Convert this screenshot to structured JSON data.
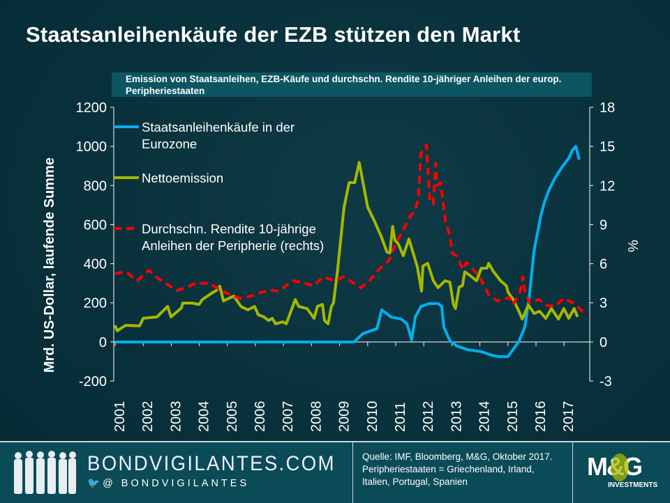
{
  "title": "Staatsanleihenkäufe der EZB stützen den Markt",
  "subtitle": "Emission von Staatsanleihen, EZB-Käufe und durchschn. Rendite 10-jähriger Anleihen der europ. Peripheriestaaten",
  "footer": {
    "site": "BONDVIGILANTES.COM",
    "twitter": "@ BONDVIGILANTES",
    "source_line1": "Quelle: IMF,  Bloomberg, M&G, Oktober 2017.",
    "source_line2": "Peripheriestaaten = Griechenland, Irland, Italien, Portugal, Spanien",
    "logo_text": "M&G",
    "logo_sub": "INVESTMENTS"
  },
  "colors": {
    "purchases": "#00b0f0",
    "issuance": "#a6b800",
    "yield": "#ff0000",
    "background": "#08303b",
    "footer": "#0b4b58"
  },
  "chart_data": {
    "type": "line",
    "ylabel": "Mrd. US-Dollar, laufende Summe",
    "ylabel_right": "%",
    "xlim": [
      2001,
      2017.85
    ],
    "ylim": [
      -200,
      1200
    ],
    "ylim_right": [
      -3,
      18
    ],
    "yticks": [
      "1200",
      "1000",
      "800",
      "600",
      "400",
      "200",
      "0",
      "-200"
    ],
    "yticks_right": [
      "18",
      "15",
      "12",
      "9",
      "6",
      "3",
      "0",
      "-3"
    ],
    "xticks": [
      "2001",
      "2002",
      "2003",
      "2004",
      "2005",
      "2006",
      "2007",
      "2008",
      "2009",
      "2010",
      "2011",
      "2012",
      "2013",
      "2014",
      "2015",
      "2016",
      "2017"
    ],
    "legend_position": "top-left",
    "series": [
      {
        "name": "Staatsanleihenkäufe in der Eurozone",
        "axis": "left",
        "style": "solid",
        "x": [
          2001,
          2009.51,
          2009.83,
          2010.33,
          2010.5,
          2010.83,
          2011.2,
          2011.4,
          2011.57,
          2011.7,
          2011.9,
          2012.19,
          2012.52,
          2012.64,
          2012.72,
          2012.94,
          2013.19,
          2013.56,
          2014.06,
          2014.43,
          2014.68,
          2015.0,
          2015.18,
          2015.38,
          2015.6,
          2015.75,
          2015.93,
          2016.05,
          2016.17,
          2016.3,
          2016.47,
          2016.67,
          2016.92,
          2017.17,
          2017.29,
          2017.42,
          2017.54
        ],
        "y": [
          0,
          0,
          43,
          68,
          164,
          128,
          117,
          93,
          11,
          128,
          182,
          196,
          196,
          182,
          75,
          4,
          -21,
          -39,
          -50,
          -68,
          -75,
          -75,
          -39,
          0,
          75,
          217,
          466,
          555,
          644,
          715,
          779,
          836,
          893,
          940,
          979,
          1000,
          932
        ]
      },
      {
        "name": "Nettoemission",
        "axis": "left",
        "style": "solid",
        "x": [
          2001,
          2001.07,
          2001.37,
          2001.87,
          2002.0,
          2002.49,
          2002.87,
          2002.99,
          2003.36,
          2003.41,
          2003.74,
          2003.99,
          2004.11,
          2004.48,
          2004.61,
          2004.73,
          2004.86,
          2005.23,
          2005.48,
          2005.73,
          2005.97,
          2006.1,
          2006.3,
          2006.47,
          2006.6,
          2006.72,
          2006.97,
          2007.1,
          2007.42,
          2007.54,
          2007.84,
          2008.09,
          2008.21,
          2008.39,
          2008.46,
          2008.59,
          2008.71,
          2008.78,
          2008.92,
          2009.16,
          2009.34,
          2009.54,
          2009.7,
          2010.0,
          2010.24,
          2010.49,
          2010.69,
          2010.79,
          2010.89,
          2010.97,
          2011.09,
          2011.27,
          2011.47,
          2011.77,
          2011.92,
          2011.97,
          2012.14,
          2012.34,
          2012.51,
          2012.76,
          2012.93,
          2013.06,
          2013.13,
          2013.26,
          2013.38,
          2013.46,
          2013.63,
          2013.88,
          2014.05,
          2014.25,
          2014.31,
          2014.49,
          2014.74,
          2014.94,
          2015.01,
          2015.19,
          2015.39,
          2015.51,
          2015.73,
          2015.93,
          2016.13,
          2016.35,
          2016.55,
          2016.8,
          2016.99,
          2017.17,
          2017.36,
          2017.48
        ],
        "y": [
          85,
          57,
          85,
          82,
          121,
          128,
          182,
          128,
          174,
          199,
          199,
          192,
          217,
          253,
          263,
          285,
          210,
          235,
          182,
          164,
          182,
          139,
          128,
          110,
          121,
          93,
          103,
          93,
          217,
          182,
          171,
          121,
          182,
          192,
          110,
          93,
          182,
          199,
          359,
          690,
          815,
          815,
          918,
          690,
          619,
          537,
          459,
          455,
          591,
          520,
          502,
          441,
          527,
          384,
          260,
          388,
          402,
          313,
          278,
          313,
          306,
          192,
          171,
          281,
          288,
          359,
          342,
          313,
          377,
          377,
          402,
          359,
          313,
          288,
          253,
          217,
          157,
          117,
          189,
          146,
          157,
          121,
          171,
          117,
          171,
          121,
          171,
          128
        ]
      },
      {
        "name": "Durchschn. Rendite 10-jährige Anleihen der Peripherie (rechts)",
        "axis": "right",
        "style": "dashed",
        "x": [
          2001,
          2001.37,
          2001.79,
          2002.2,
          2002.54,
          2002.94,
          2003.19,
          2003.54,
          2003.86,
          2004.36,
          2004.61,
          2005.03,
          2005.43,
          2005.85,
          2006.17,
          2006.6,
          2006.84,
          2007.34,
          2007.77,
          2008.08,
          2008.41,
          2008.83,
          2009.15,
          2009.5,
          2009.75,
          2010.07,
          2010.4,
          2010.77,
          2011.02,
          2011.27,
          2011.52,
          2011.67,
          2011.8,
          2011.9,
          2012.1,
          2012.17,
          2012.22,
          2012.34,
          2012.42,
          2012.47,
          2012.6,
          2012.77,
          2012.92,
          2013.02,
          2013.17,
          2013.4,
          2013.52,
          2013.77,
          2014.02,
          2014.32,
          2014.62,
          2015.04,
          2015.19,
          2015.43,
          2015.53,
          2015.6,
          2015.77,
          2016.1,
          2016.35,
          2016.67,
          2016.99,
          2017.41,
          2017.66,
          2018.15
        ],
        "y": [
          5.23,
          5.4,
          4.7,
          5.5,
          4.86,
          4.3,
          3.95,
          4.16,
          4.5,
          4.5,
          4.16,
          3.7,
          3.36,
          3.52,
          3.8,
          3.95,
          3.9,
          4.7,
          4.5,
          4.3,
          5.0,
          4.7,
          5.0,
          4.5,
          4.16,
          4.7,
          5.55,
          6.3,
          7.6,
          8.6,
          9.66,
          10.0,
          10.9,
          14.5,
          15.1,
          12.5,
          10.7,
          10.6,
          13.7,
          12.0,
          12.2,
          9.3,
          8.2,
          6.8,
          6.6,
          5.55,
          6.1,
          5.55,
          4.86,
          3.63,
          3.15,
          3.42,
          2.88,
          3.8,
          5.0,
          3.95,
          3.0,
          3.26,
          2.83,
          2.72,
          3.36,
          2.88,
          2.35,
          2.35
        ]
      }
    ]
  }
}
